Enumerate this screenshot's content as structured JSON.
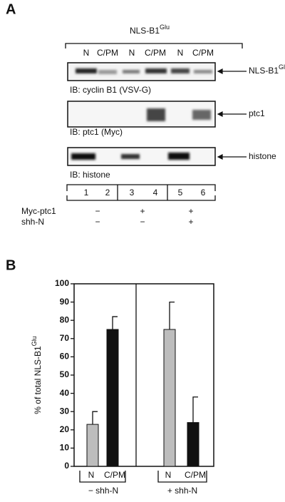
{
  "panel_a": {
    "label": "A",
    "header": {
      "base": "NLS-B1",
      "sup": "Glu"
    },
    "lanes": [
      "N",
      "C/PM",
      "N",
      "C/PM",
      "N",
      "C/PM"
    ],
    "blots": [
      {
        "target": {
          "base": "NLS-B1",
          "sup": "Glu"
        },
        "antibody": "IB:  cyclin B1 (VSV-G)"
      },
      {
        "target": {
          "base": "ptc1",
          "sup": ""
        },
        "antibody": "IB:  ptc1 (Myc)"
      },
      {
        "target": {
          "base": "histone",
          "sup": ""
        },
        "antibody": "IB:  histone"
      }
    ],
    "lane_numbers": [
      "1",
      "2",
      "3",
      "4",
      "5",
      "6"
    ],
    "conditions": [
      {
        "name": "Myc-ptc1",
        "signs": [
          "−",
          "+",
          "+"
        ]
      },
      {
        "name": "shh-N",
        "signs": [
          "−",
          "−",
          "+"
        ]
      }
    ]
  },
  "chart_data": {
    "type": "bar",
    "label": "B",
    "ylabel": {
      "base": "% of total NLS-B1",
      "sup": "Glu"
    },
    "categories": [
      "N",
      "C/PM",
      "N",
      "C/PM"
    ],
    "groups": [
      "− shh-N",
      "+ shh-N"
    ],
    "values": [
      23,
      75,
      75,
      24
    ],
    "errors": [
      7,
      7,
      15,
      14
    ],
    "colors": [
      "#bdbdbd",
      "#111111",
      "#bdbdbd",
      "#111111"
    ],
    "ylim": [
      0,
      100
    ],
    "yticks": [
      0,
      10,
      20,
      30,
      40,
      50,
      60,
      70,
      80,
      90,
      100
    ]
  }
}
